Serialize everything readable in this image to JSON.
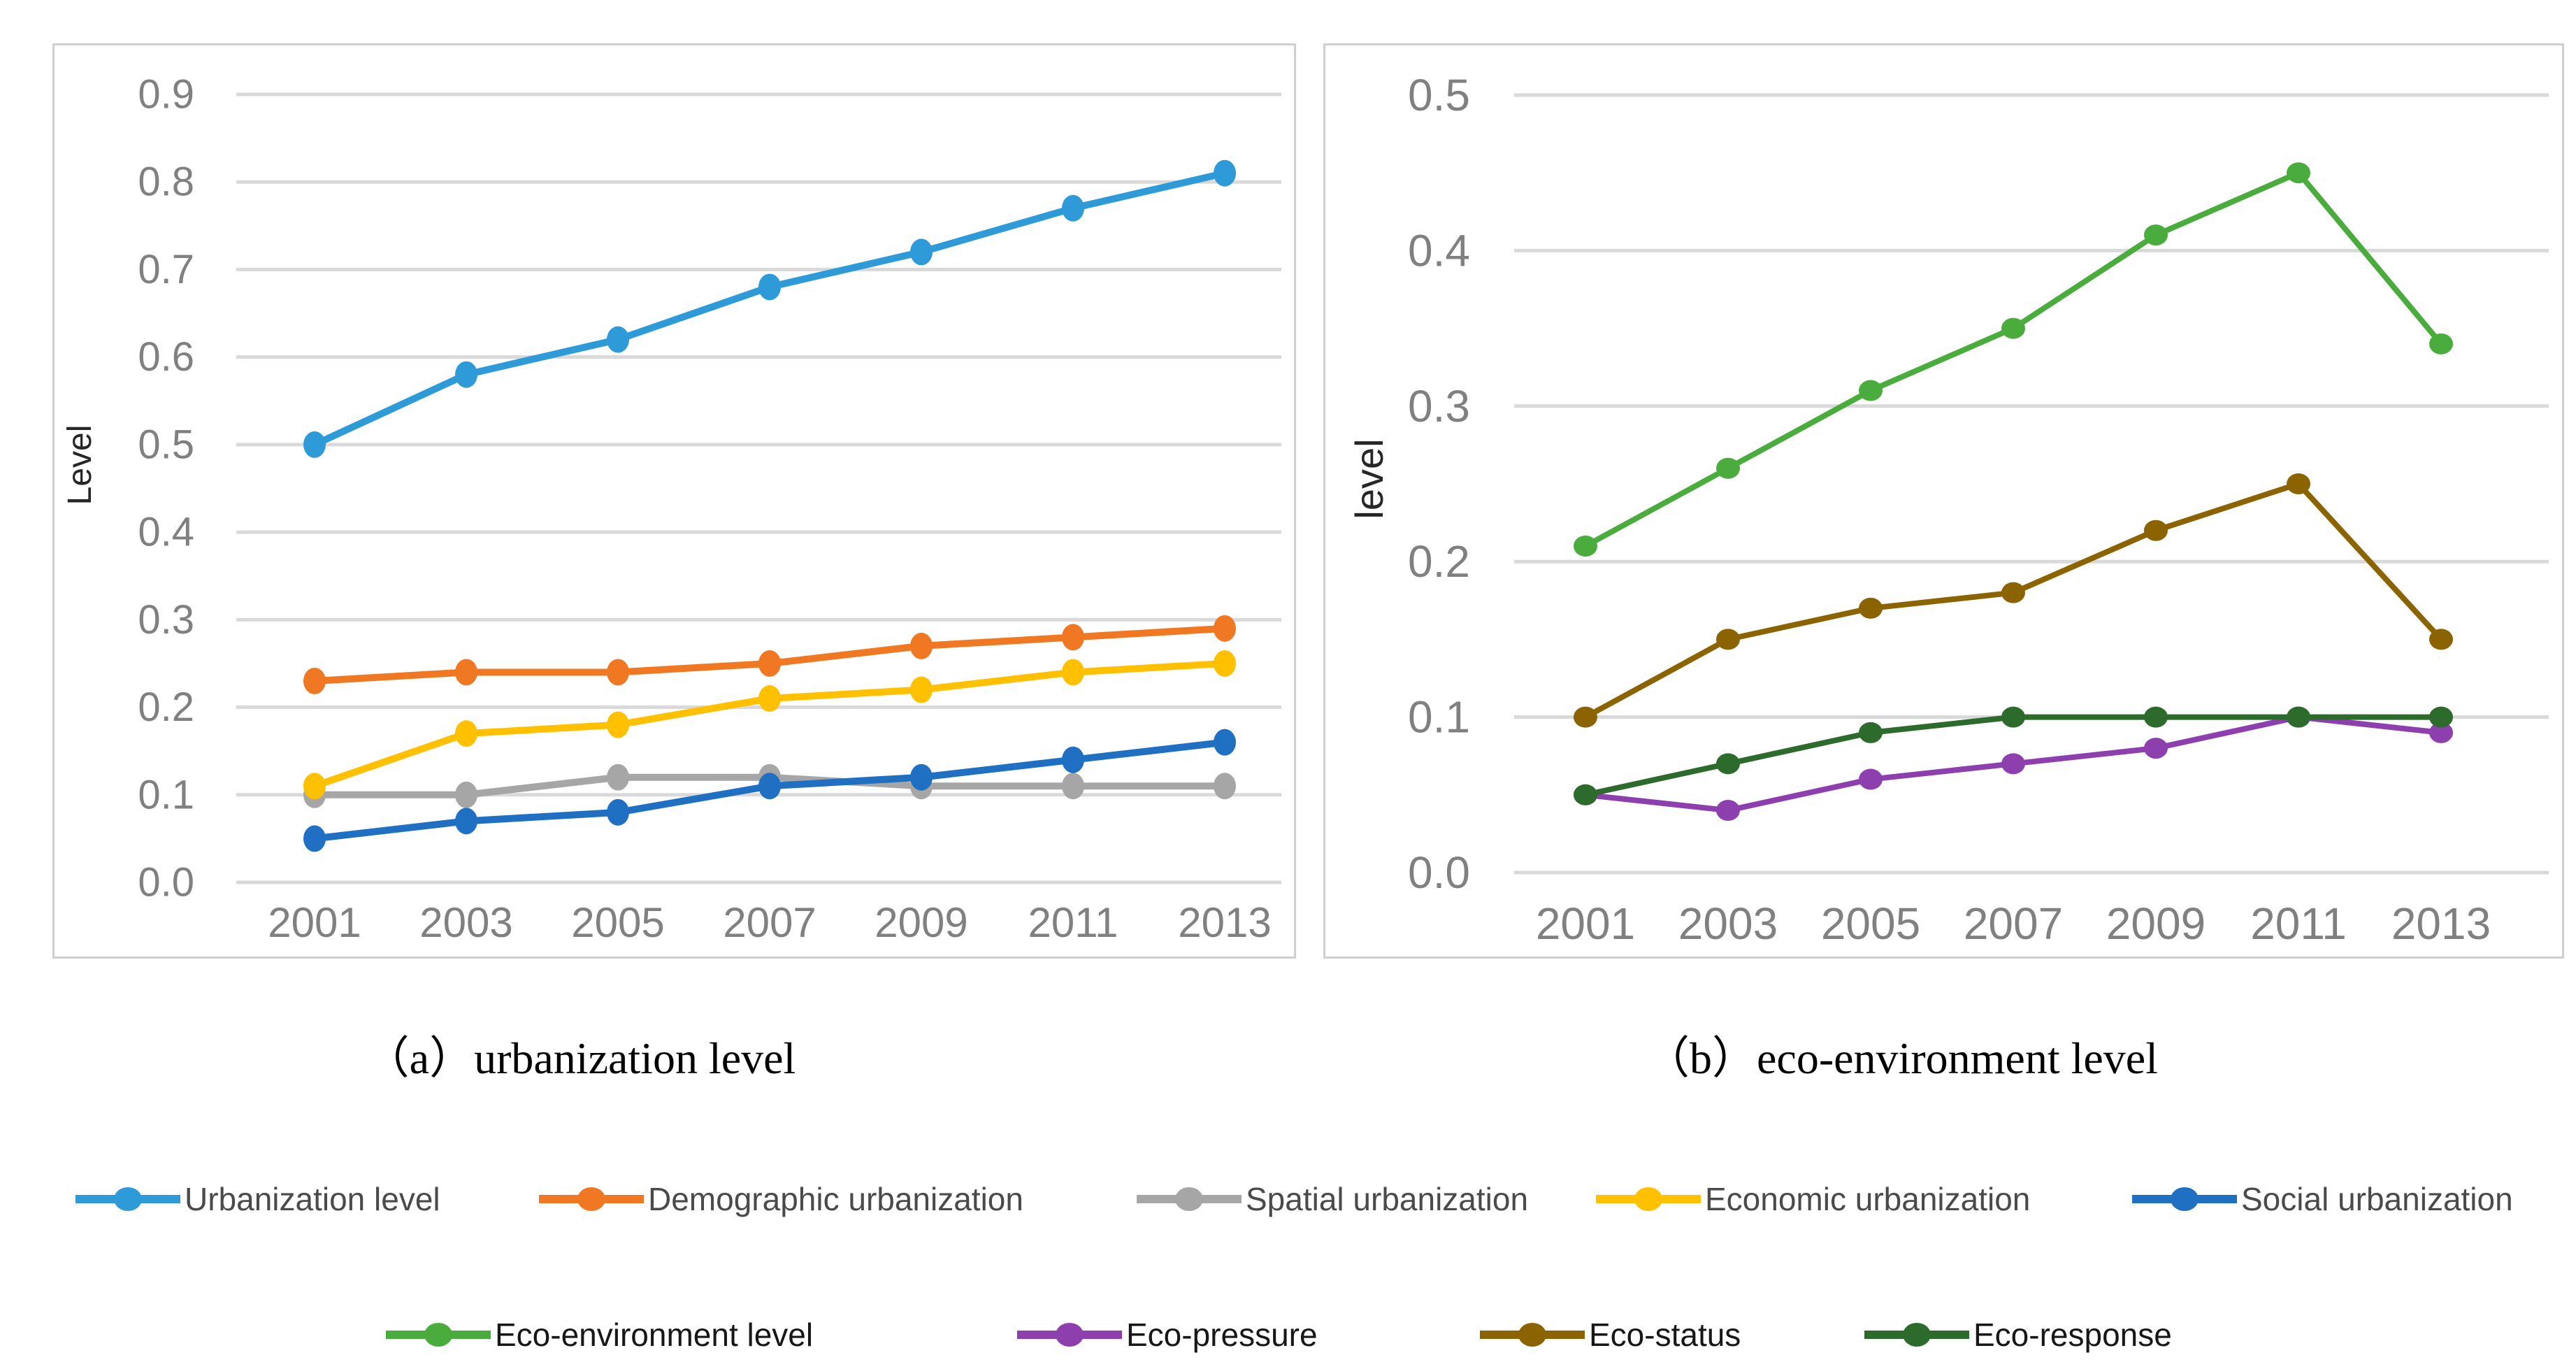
{
  "colors": {
    "gridline": "#D9D9D9",
    "panel_border": "#D0CECE",
    "tick_label": "#808080",
    "axis_title": "#262626",
    "caption_text": "#000000"
  },
  "chart_data": [
    {
      "id": "a",
      "type": "line",
      "caption": "（a）urbanization level",
      "title": "",
      "xlabel": "",
      "ylabel": "Level",
      "ylim": [
        0.0,
        0.9
      ],
      "y_ticks": [
        "0.9",
        "0.8",
        "0.7",
        "0.6",
        "0.5",
        "0.4",
        "0.3",
        "0.2",
        "0.1",
        "0.0"
      ],
      "categories": [
        "2001",
        "2003",
        "2005",
        "2007",
        "2009",
        "2011",
        "2013"
      ],
      "grid": true,
      "legend_position": "bottom",
      "series": [
        {
          "name": "Urbanization level",
          "color": "#2E9BD8",
          "values": [
            0.5,
            0.58,
            0.62,
            0.68,
            0.72,
            0.77,
            0.81
          ]
        },
        {
          "name": "Demographic urbanization",
          "color": "#F07823",
          "values": [
            0.23,
            0.24,
            0.24,
            0.25,
            0.27,
            0.28,
            0.29
          ]
        },
        {
          "name": "Spatial urbanization",
          "color": "#A6A6A6",
          "values": [
            0.1,
            0.1,
            0.12,
            0.12,
            0.11,
            0.11,
            0.11
          ]
        },
        {
          "name": "Economic urbanization",
          "color": "#FFC000",
          "values": [
            0.11,
            0.17,
            0.18,
            0.21,
            0.22,
            0.24,
            0.25
          ]
        },
        {
          "name": "Social urbanization",
          "color": "#1F6FC2",
          "values": [
            0.05,
            0.07,
            0.08,
            0.11,
            0.12,
            0.14,
            0.16
          ]
        }
      ]
    },
    {
      "id": "b",
      "type": "line",
      "caption": "（b）eco-environment level",
      "title": "",
      "xlabel": "",
      "ylabel": "level",
      "ylim": [
        0.0,
        0.5
      ],
      "y_ticks": [
        "0.5",
        "0.4",
        "0.3",
        "0.2",
        "0.1",
        "0.0"
      ],
      "categories": [
        "2001",
        "2003",
        "2005",
        "2007",
        "2009",
        "2011",
        "2013"
      ],
      "grid": true,
      "legend_position": "bottom",
      "series": [
        {
          "name": "Eco-environment level",
          "color": "#4AAC3C",
          "values": [
            0.21,
            0.26,
            0.31,
            0.35,
            0.41,
            0.45,
            0.34
          ]
        },
        {
          "name": "Eco-pressure",
          "color": "#8E3FAE",
          "values": [
            0.05,
            0.04,
            0.06,
            0.07,
            0.08,
            0.1,
            0.09
          ]
        },
        {
          "name": "Eco-status",
          "color": "#8B6401",
          "values": [
            0.1,
            0.15,
            0.17,
            0.18,
            0.22,
            0.25,
            0.15
          ]
        },
        {
          "name": "Eco-response",
          "color": "#2D6B2D",
          "values": [
            0.05,
            0.07,
            0.09,
            0.1,
            0.1,
            0.1,
            0.1
          ]
        }
      ]
    }
  ],
  "legend": {
    "rows": [
      [
        "Urbanization level",
        "Demographic urbanization",
        "Spatial urbanization",
        "Economic urbanization",
        "Social urbanization"
      ],
      [
        "Eco-environment level",
        "Eco-pressure",
        "Eco-status",
        "Eco-response"
      ]
    ]
  }
}
